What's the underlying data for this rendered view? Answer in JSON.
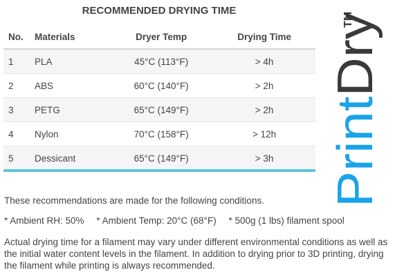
{
  "title": "RECOMMENDED DRYING TIME",
  "table": {
    "headers": [
      "No.",
      "Materials",
      "Dryer Temp",
      "Drying Time"
    ],
    "rows": [
      {
        "no": "1",
        "material": "PLA",
        "temp": "45°C (113°F)",
        "time": "> 4h"
      },
      {
        "no": "2",
        "material": "ABS",
        "temp": "60°C (140°F)",
        "time": "> 2h"
      },
      {
        "no": "3",
        "material": "PETG",
        "temp": "65°C (149°F)",
        "time": "> 2h"
      },
      {
        "no": "4",
        "material": "Nylon",
        "temp": "70°C (158°F)",
        "time": "> 12h"
      },
      {
        "no": "5",
        "material": "Dessicant",
        "temp": "65°C (149°F)",
        "time": "> 3h"
      }
    ]
  },
  "conditions_intro": "These recommendations are made for the following conditions.",
  "conditions": [
    "* Ambient RH: 50%",
    "* Ambient Temp: 20°C (68°F)",
    "* 500g (1 lbs) filament spool"
  ],
  "note": "Actual drying time for a filament may vary under different environmental conditions as well as the initial water content levels in the filament.  In addition to drying prior to 3D printing, drying the filament while printing is always recommended.",
  "logo": {
    "word_part1": "Print",
    "word_part2": "Dry",
    "trademark": "TM",
    "color_part1": "#1aa3e8",
    "color_part2": "#3a3a3a"
  }
}
